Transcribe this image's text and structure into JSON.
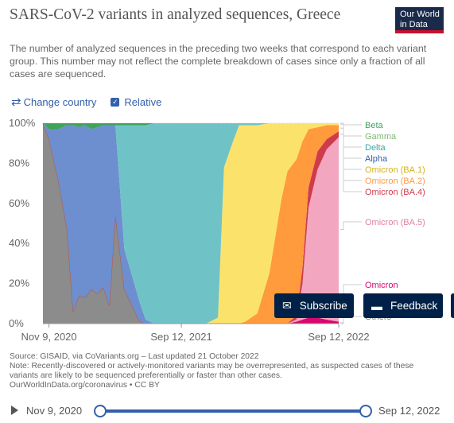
{
  "header": {
    "title": "SARS-CoV-2 variants in analyzed sequences, Greece",
    "subtitle": "The number of analyzed sequences in the preceding two weeks that correspond to each variant group. This number may not reflect the complete breakdown of cases since only a fraction of all cases are sequenced.",
    "logo_line1": "Our World",
    "logo_line2": "in Data"
  },
  "controls": {
    "change_country": "Change country",
    "relative": "Relative",
    "relative_checked": true,
    "change_country_icon": "swap-arrows-icon",
    "checkbox_icon": "checkmark-icon"
  },
  "chart_data": {
    "type": "area",
    "stacked": true,
    "relative": true,
    "x": [
      "2020-10-26",
      "2020-11-09",
      "2020-11-30",
      "2020-12-21",
      "2021-01-04",
      "2021-01-18",
      "2021-02-01",
      "2021-02-15",
      "2021-03-01",
      "2021-03-15",
      "2021-03-29",
      "2021-04-12",
      "2021-05-03",
      "2021-06-07",
      "2021-06-21",
      "2021-07-12",
      "2021-08-23",
      "2021-09-12",
      "2021-10-04",
      "2021-11-08",
      "2021-12-06",
      "2021-12-20",
      "2022-01-10",
      "2022-01-24",
      "2022-02-07",
      "2022-03-07",
      "2022-04-04",
      "2022-05-02",
      "2022-05-16",
      "2022-06-06",
      "2022-06-20",
      "2022-07-04",
      "2022-07-25",
      "2022-08-15",
      "2022-09-12"
    ],
    "series": [
      {
        "name": "Others",
        "color": "#8c8c8c",
        "values": [
          100,
          92,
          72,
          47,
          6,
          14,
          13,
          17,
          15,
          18,
          9,
          54,
          17,
          1,
          0,
          0,
          0,
          0,
          0,
          0,
          0,
          0,
          0,
          0,
          0,
          0,
          0,
          0,
          0,
          0,
          0,
          0,
          0,
          0,
          0
        ]
      },
      {
        "name": "Omicron",
        "color": "#d6086f",
        "values": [
          0,
          0,
          0,
          0,
          0,
          0,
          0,
          0,
          0,
          0,
          0,
          0,
          0,
          0,
          0,
          0,
          0,
          0,
          0,
          0,
          0,
          0,
          0,
          0,
          0,
          0,
          0,
          0,
          0,
          1,
          2,
          3,
          3,
          2,
          1
        ]
      },
      {
        "name": "Omicron (BA.5)",
        "color": "#f2a6bf",
        "values": [
          0,
          0,
          0,
          0,
          0,
          0,
          0,
          0,
          0,
          0,
          0,
          0,
          0,
          0,
          0,
          0,
          0,
          0,
          0,
          0,
          0,
          0,
          0,
          0,
          0,
          0,
          0,
          0,
          0,
          1,
          18,
          55,
          74,
          85,
          92
        ]
      },
      {
        "name": "Omicron (BA.4)",
        "color": "#cf3b4c",
        "values": [
          0,
          0,
          0,
          0,
          0,
          0,
          0,
          0,
          0,
          0,
          0,
          0,
          0,
          0,
          0,
          0,
          0,
          0,
          0,
          0,
          0,
          0,
          0,
          0,
          0,
          0,
          0,
          0,
          0,
          2,
          8,
          10,
          9,
          5,
          3
        ]
      },
      {
        "name": "Omicron (BA.2)",
        "color": "#ff9a3d",
        "values": [
          0,
          0,
          0,
          0,
          0,
          0,
          0,
          0,
          0,
          0,
          0,
          0,
          0,
          0,
          0,
          0,
          0,
          0,
          0,
          0,
          0,
          0,
          0,
          0,
          1,
          5,
          25,
          62,
          76,
          78,
          63,
          29,
          12,
          7,
          3
        ]
      },
      {
        "name": "Omicron (BA.1)",
        "color": "#fbe36b",
        "values": [
          0,
          0,
          0,
          0,
          0,
          0,
          0,
          0,
          0,
          0,
          0,
          0,
          0,
          0,
          0,
          0,
          0,
          0,
          0,
          0,
          3,
          78,
          91,
          99,
          98,
          94,
          75,
          38,
          24,
          18,
          9,
          3,
          2,
          1,
          1
        ]
      },
      {
        "name": "Alpha",
        "color": "#6d8fcf",
        "values": [
          0,
          5,
          25,
          52,
          93,
          84,
          86,
          80,
          83,
          81,
          90,
          45,
          20,
          10,
          2,
          0,
          0,
          0,
          0,
          0,
          0,
          0,
          0,
          0,
          0,
          0,
          0,
          0,
          0,
          0,
          0,
          0,
          0,
          0,
          0
        ]
      },
      {
        "name": "Delta",
        "color": "#6fc3c7",
        "values": [
          0,
          0,
          0,
          0,
          0,
          0,
          0,
          0,
          0,
          0,
          0,
          0,
          62,
          88,
          97,
          100,
          100,
          100,
          100,
          100,
          97,
          22,
          9,
          1,
          1,
          1,
          0,
          0,
          0,
          0,
          0,
          0,
          0,
          0,
          0
        ]
      },
      {
        "name": "Gamma",
        "color": "#9ccf94",
        "values": [
          0,
          0,
          0,
          0,
          0,
          0,
          0,
          0,
          0,
          0,
          0,
          0,
          0,
          0,
          0,
          0,
          0,
          0,
          0,
          0,
          0,
          0,
          0,
          0,
          0,
          0,
          0,
          0,
          0,
          0,
          0,
          0,
          0,
          0,
          0
        ]
      },
      {
        "name": "Beta",
        "color": "#3fa35a",
        "values": [
          0,
          3,
          3,
          1,
          1,
          2,
          1,
          3,
          2,
          1,
          1,
          1,
          1,
          1,
          1,
          0,
          0,
          0,
          0,
          0,
          0,
          0,
          0,
          0,
          0,
          0,
          0,
          0,
          0,
          0,
          0,
          0,
          0,
          0,
          0
        ]
      }
    ],
    "legend": [
      "Beta",
      "Gamma",
      "Delta",
      "Alpha",
      "Omicron (BA.1)",
      "Omicron (BA.2)",
      "Omicron (BA.4)",
      "Omicron (BA.5)",
      "Omicron",
      "Others"
    ],
    "legend_placement": "right",
    "yticks": [
      "0%",
      "20%",
      "40%",
      "60%",
      "80%",
      "100%"
    ],
    "xticks": [
      "Nov 9, 2020",
      "Sep 12, 2021",
      "Sep 12, 2022"
    ],
    "ylim": [
      0,
      100
    ],
    "grid": true
  },
  "footer": {
    "source": "Source: GISAID, via CoVariants.org – Last updated 21 October 2022",
    "note": "Note: Recently-discovered or actively-monitored variants may be overrepresented, as suspected cases of these variants are likely to be sequenced preferentially or faster than other cases.",
    "credit": "OurWorldInData.org/coronavirus • CC BY"
  },
  "buttons": {
    "subscribe": "Subscribe",
    "feedback": "Feedback",
    "subscribe_icon": "envelope-icon",
    "feedback_icon": "chat-bubble-icon"
  },
  "timeline": {
    "start": "Nov 9, 2020",
    "end": "Sep 12, 2022",
    "play_icon": "play-icon"
  }
}
